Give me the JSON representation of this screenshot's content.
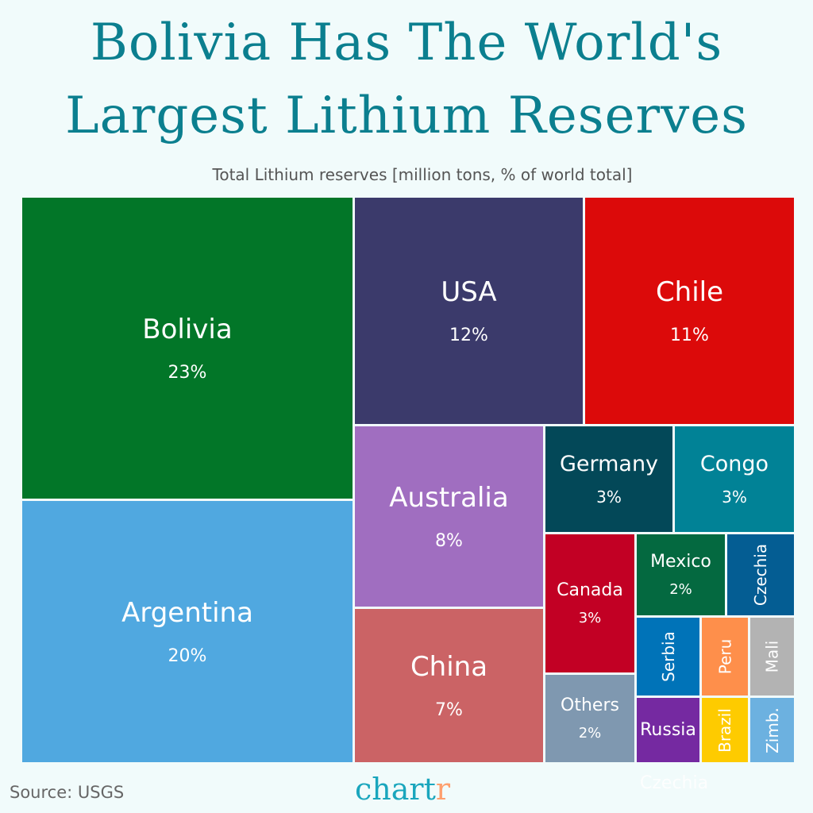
{
  "title": "Bolivia Has The World's Largest Lithium Reserves",
  "subtitle": "Total Lithium reserves [million tons, % of world total]",
  "source": "Source: USGS",
  "logo": {
    "main": "chart",
    "accent": "r"
  },
  "ghost_label": "Czechia",
  "colors": {
    "background": "#f1fbfb",
    "title": "#0b7f8f"
  },
  "chart_data": {
    "type": "treemap",
    "title": "Bolivia Has The World's Largest Lithium Reserves",
    "subtitle": "Total Lithium reserves [million tons, % of world total]",
    "items": [
      {
        "name": "Bolivia",
        "label": "23%",
        "value": 23,
        "color": "#027628"
      },
      {
        "name": "Argentina",
        "label": "20%",
        "value": 20,
        "color": "#50a8e0"
      },
      {
        "name": "USA",
        "label": "12%",
        "value": 12,
        "color": "#3b3a6b"
      },
      {
        "name": "Chile",
        "label": "11%",
        "value": 11,
        "color": "#dc0a0a"
      },
      {
        "name": "Australia",
        "label": "8%",
        "value": 8,
        "color": "#a06ec0"
      },
      {
        "name": "China",
        "label": "7%",
        "value": 7,
        "color": "#cb6365"
      },
      {
        "name": "Germany",
        "label": "3%",
        "value": 3,
        "color": "#034858"
      },
      {
        "name": "Congo",
        "label": "3%",
        "value": 3,
        "color": "#018296"
      },
      {
        "name": "Canada",
        "label": "3%",
        "value": 3,
        "color": "#c20024"
      },
      {
        "name": "Others",
        "label": "2%",
        "value": 2,
        "color": "#7f98b0"
      },
      {
        "name": "Mexico",
        "label": "2%",
        "value": 2,
        "color": "#046940"
      },
      {
        "name": "Czechia",
        "label": "",
        "color": "#045d93"
      },
      {
        "name": "Serbia",
        "label": "",
        "color": "#0073b8"
      },
      {
        "name": "Peru",
        "label": "",
        "color": "#fe8f4b"
      },
      {
        "name": "Mali",
        "label": "",
        "color": "#b3b3b3"
      },
      {
        "name": "Russia",
        "label": "",
        "color": "#7529a1"
      },
      {
        "name": "Brazil",
        "label": "",
        "color": "#fecb00"
      },
      {
        "name": "Zimb.",
        "label": "",
        "color": "#6cb1e0"
      }
    ]
  }
}
